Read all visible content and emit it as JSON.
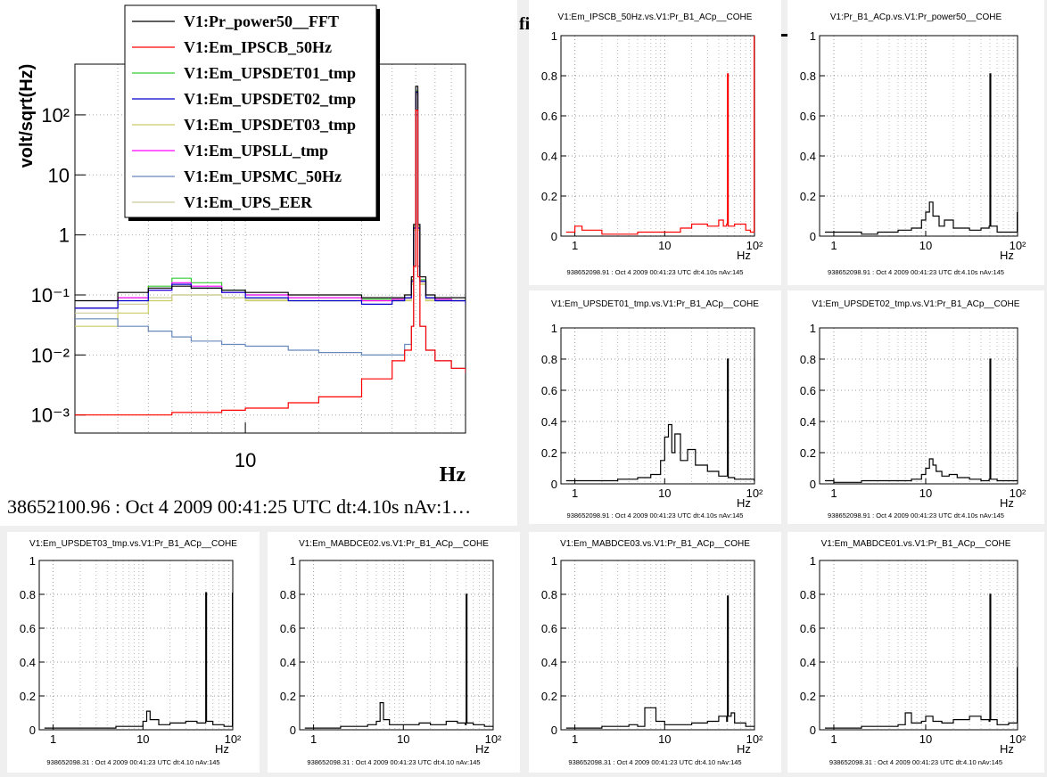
{
  "main_plot": {
    "ylabel": "volt/sqrt(Hz)",
    "xlabel": "Hz",
    "footer": "38652100.96 : Oct  4 2009 00:41:25 UTC dt:4.10s nAv:1…",
    "clipped_title": "fi",
    "legend": [
      {
        "label": "V1:Pr_power50__FFT",
        "color": "#000000"
      },
      {
        "label": "V1:Em_IPSCB_50Hz",
        "color": "#ff0000"
      },
      {
        "label": "V1:Em_UPSDET01_tmp",
        "color": "#33cc33"
      },
      {
        "label": "V1:Em_UPSDET02_tmp",
        "color": "#0000cc"
      },
      {
        "label": "V1:Em_UPSDET03_tmp",
        "color": "#cccc66"
      },
      {
        "label": "V1:Em_UPSLL_tmp",
        "color": "#ff00ff"
      },
      {
        "label": "V1:Em_UPSMC_50Hz",
        "color": "#6688bb"
      },
      {
        "label": "V1:Em_UPS_EER",
        "color": "#cccc99"
      }
    ],
    "y_ticks": [
      "10²",
      "10",
      "1",
      "10⁻¹",
      "10⁻²",
      "10⁻³"
    ],
    "x_ticks": [
      "10"
    ]
  },
  "chart_data": [
    {
      "type": "line",
      "title": "",
      "xlabel": "Hz",
      "ylabel": "volt/sqrt(Hz)",
      "x_scale": "log",
      "y_scale": "log",
      "xlim": [
        2,
        80
      ],
      "ylim": [
        0.0005,
        700
      ],
      "grid": true,
      "legend_position": "top-center",
      "x": [
        2,
        3,
        4,
        5,
        6,
        8,
        10,
        15,
        20,
        30,
        40,
        45,
        48,
        49,
        50,
        51,
        52,
        55,
        60,
        70,
        80
      ],
      "series": [
        {
          "name": "V1:Pr_power50__FFT",
          "color": "#000000",
          "values": [
            0.08,
            0.11,
            0.13,
            0.14,
            0.13,
            0.12,
            0.11,
            0.1,
            0.1,
            0.09,
            0.09,
            0.1,
            0.2,
            1.5,
            300,
            1.5,
            0.2,
            0.1,
            0.09,
            0.09,
            0.08
          ]
        },
        {
          "name": "V1:Em_IPSCB_50Hz",
          "color": "#ff0000",
          "values": [
            0.001,
            0.001,
            0.001,
            0.0011,
            0.0011,
            0.0012,
            0.0013,
            0.0016,
            0.002,
            0.004,
            0.008,
            0.012,
            0.03,
            0.3,
            120,
            0.2,
            0.03,
            0.012,
            0.008,
            0.006,
            0.005
          ]
        },
        {
          "name": "V1:Em_UPSDET01_tmp",
          "color": "#33cc33",
          "values": [
            0.06,
            0.09,
            0.14,
            0.19,
            0.16,
            0.12,
            0.1,
            0.09,
            0.09,
            0.085,
            0.085,
            0.09,
            0.18,
            1.4,
            250,
            1.4,
            0.18,
            0.09,
            0.085,
            0.08,
            0.08
          ]
        },
        {
          "name": "V1:Em_UPSDET02_tmp",
          "color": "#0000cc",
          "values": [
            0.06,
            0.08,
            0.12,
            0.15,
            0.13,
            0.11,
            0.09,
            0.08,
            0.08,
            0.07,
            0.08,
            0.09,
            0.17,
            1.3,
            240,
            1.3,
            0.17,
            0.09,
            0.08,
            0.08,
            0.07
          ]
        },
        {
          "name": "V1:Em_UPSDET03_tmp",
          "color": "#cccc66",
          "values": [
            0.03,
            0.05,
            0.08,
            0.1,
            0.1,
            0.09,
            0.08,
            0.08,
            0.08,
            0.08,
            0.08,
            0.08,
            0.15,
            1.2,
            230,
            1.2,
            0.15,
            0.08,
            0.08,
            0.08,
            0.08
          ]
        },
        {
          "name": "V1:Em_UPSLL_tmp",
          "color": "#ff00ff",
          "values": [
            0.06,
            0.09,
            0.12,
            0.16,
            0.14,
            0.11,
            0.1,
            0.09,
            0.09,
            0.08,
            0.085,
            0.09,
            0.17,
            1.3,
            240,
            1.3,
            0.17,
            0.09,
            0.085,
            0.08,
            0.08
          ]
        },
        {
          "name": "V1:Em_UPSMC_50Hz",
          "color": "#6688bb",
          "values": [
            0.04,
            0.03,
            0.025,
            0.02,
            0.017,
            0.015,
            0.014,
            0.012,
            0.011,
            0.01,
            0.01,
            0.015,
            0.03,
            0.3,
            100,
            0.3,
            0.03,
            0.012,
            0.008,
            0.006,
            0.005
          ]
        },
        {
          "name": "V1:Em_UPS_EER",
          "color": "#cccc99",
          "values": [
            0.05,
            0.07,
            0.09,
            0.1,
            0.1,
            0.09,
            0.085,
            0.08,
            0.08,
            0.08,
            0.08,
            0.085,
            0.16,
            1.3,
            220,
            1.3,
            0.16,
            0.085,
            0.08,
            0.08,
            0.08
          ]
        }
      ]
    },
    {
      "type": "line",
      "title": "V1:Em_IPSCB_50Hz.vs.V1:Pr_B1_ACp__COHE",
      "xlabel": "Hz",
      "ylabel": "",
      "x_scale": "log",
      "xlim": [
        0.7,
        100
      ],
      "ylim": [
        0,
        1
      ],
      "grid": true,
      "y_ticks": [
        "0",
        "0.2",
        "0.4",
        "0.6",
        "0.8",
        "1"
      ],
      "x_ticks": [
        "1",
        "10",
        "10²"
      ],
      "footer": "938652098.91 : Oct  4 2009 00:41:23 UTC dt:4.10s nAv:145",
      "color": "#ff0000",
      "x": [
        0.8,
        1,
        1.2,
        2,
        3,
        5,
        10,
        15,
        20,
        30,
        40,
        45,
        49,
        50,
        51,
        60,
        80,
        90,
        99
      ],
      "values": [
        0.02,
        0.05,
        0.03,
        0.01,
        0.01,
        0.02,
        0.02,
        0.04,
        0.06,
        0.05,
        0.08,
        0.05,
        0.06,
        0.81,
        0.05,
        0.06,
        0.03,
        0.02,
        1.0
      ]
    },
    {
      "type": "line",
      "title": "V1:Pr_B1_ACp.vs.V1:Pr_power50__COHE",
      "xlabel": "Hz",
      "ylabel": "",
      "x_scale": "log",
      "xlim": [
        0.7,
        100
      ],
      "ylim": [
        0,
        1
      ],
      "grid": true,
      "y_ticks": [
        "0",
        "0.2",
        "0.4",
        "0.6",
        "0.8",
        "1"
      ],
      "x_ticks": [
        "1",
        "10",
        "10²"
      ],
      "footer": "938652098.91 : Oct  4 2009 00:41:23 UTC dt:4.10s nAv:145",
      "color": "#000000",
      "x": [
        0.8,
        1,
        2,
        3,
        5,
        7,
        9,
        10,
        11,
        12,
        14,
        16,
        20,
        30,
        40,
        49,
        50,
        51,
        60,
        99
      ],
      "values": [
        0.02,
        0.02,
        0.01,
        0.02,
        0.03,
        0.04,
        0.08,
        0.12,
        0.17,
        0.1,
        0.05,
        0.08,
        0.04,
        0.03,
        0.04,
        0.05,
        0.81,
        0.05,
        0.02,
        0.12
      ]
    },
    {
      "type": "line",
      "title": "V1:Em_UPSDET01_tmp.vs.V1:Pr_B1_ACp__COHE",
      "xlabel": "Hz",
      "ylabel": "",
      "x_scale": "log",
      "xlim": [
        0.7,
        100
      ],
      "ylim": [
        0,
        1
      ],
      "grid": true,
      "y_ticks": [
        "0",
        "0.2",
        "0.4",
        "0.6",
        "0.8",
        "1"
      ],
      "x_ticks": [
        "1",
        "10",
        "10²"
      ],
      "footer": "938652098.91 : Oct  4 2009 00:41:23 UTC dt:4.10s nAv:145",
      "color": "#000000",
      "x": [
        0.8,
        1,
        2,
        3,
        5,
        7,
        9,
        10,
        11,
        12,
        13,
        15,
        18,
        22,
        30,
        40,
        49,
        50,
        51,
        60,
        99
      ],
      "values": [
        0.02,
        0.02,
        0.02,
        0.03,
        0.04,
        0.06,
        0.15,
        0.3,
        0.38,
        0.2,
        0.32,
        0.15,
        0.22,
        0.12,
        0.08,
        0.05,
        0.05,
        0.8,
        0.04,
        0.03,
        0.02
      ]
    },
    {
      "type": "line",
      "title": "V1:Em_UPSDET02_tmp.vs.V1:Pr_B1_ACp__COHE",
      "xlabel": "Hz",
      "ylabel": "",
      "x_scale": "log",
      "xlim": [
        0.7,
        100
      ],
      "ylim": [
        0,
        1
      ],
      "grid": true,
      "y_ticks": [
        "0",
        "0.2",
        "0.4",
        "0.6",
        "0.8",
        "1"
      ],
      "x_ticks": [
        "1",
        "10",
        "10²"
      ],
      "footer": "938652098.91 : Oct  4 2009 00:41:23 UTC dt:4.10s nAv:145",
      "color": "#000000",
      "x": [
        0.8,
        1,
        2,
        3,
        5,
        7,
        9,
        10,
        11,
        12,
        13,
        15,
        18,
        22,
        30,
        40,
        49,
        50,
        51,
        60,
        99
      ],
      "values": [
        0.02,
        0.01,
        0.02,
        0.02,
        0.02,
        0.03,
        0.06,
        0.1,
        0.16,
        0.12,
        0.08,
        0.05,
        0.06,
        0.04,
        0.03,
        0.02,
        0.03,
        0.8,
        0.03,
        0.02,
        0.02
      ]
    },
    {
      "type": "line",
      "title": "V1:Em_UPSDET03_tmp.vs.V1:Pr_B1_ACp__COHE",
      "xlabel": "Hz",
      "ylabel": "",
      "x_scale": "log",
      "xlim": [
        0.7,
        100
      ],
      "ylim": [
        0,
        1
      ],
      "grid": true,
      "y_ticks": [
        "0",
        "0.2",
        "0.4",
        "0.6",
        "0.8",
        "1"
      ],
      "x_ticks": [
        "1",
        "10",
        "10²"
      ],
      "footer": "938652098.31 : Oct  4 2009 00:41:23 UTC dt:4.10 nAv:145",
      "color": "#000000",
      "x": [
        0.8,
        1,
        2,
        3,
        5,
        8,
        10,
        11,
        12,
        15,
        20,
        30,
        40,
        49,
        50,
        51,
        60,
        80,
        99
      ],
      "values": [
        0.01,
        0.01,
        0.01,
        0.01,
        0.02,
        0.02,
        0.05,
        0.11,
        0.06,
        0.03,
        0.04,
        0.05,
        0.04,
        0.04,
        0.81,
        0.05,
        0.03,
        0.02,
        0.81
      ]
    },
    {
      "type": "line",
      "title": "V1:Em_MABDCE02.vs.V1:Pr_B1_ACp__COHE",
      "xlabel": "Hz",
      "ylabel": "",
      "x_scale": "log",
      "xlim": [
        0.7,
        100
      ],
      "ylim": [
        0,
        1
      ],
      "grid": true,
      "y_ticks": [
        "0",
        "0.2",
        "0.4",
        "0.6",
        "0.8",
        "1"
      ],
      "x_ticks": [
        "1",
        "10",
        "10²"
      ],
      "footer": "938652098.31 : Oct  4 2009 00:41:23 UTC dt:4.10 nAv:145",
      "color": "#000000",
      "x": [
        0.8,
        1,
        2,
        3,
        4,
        5,
        5.5,
        6,
        7,
        10,
        15,
        20,
        30,
        40,
        49,
        50,
        51,
        60,
        80,
        99
      ],
      "values": [
        0.01,
        0.01,
        0.02,
        0.02,
        0.03,
        0.05,
        0.16,
        0.06,
        0.03,
        0.03,
        0.04,
        0.03,
        0.05,
        0.04,
        0.03,
        0.8,
        0.04,
        0.03,
        0.02,
        0.02
      ]
    },
    {
      "type": "line",
      "title": "V1:Em_MABDCE03.vs.V1:Pr_B1_ACp__COHE",
      "xlabel": "Hz",
      "ylabel": "",
      "x_scale": "log",
      "xlim": [
        0.7,
        100
      ],
      "ylim": [
        0,
        1
      ],
      "grid": true,
      "y_ticks": [
        "0",
        "0.2",
        "0.4",
        "0.6",
        "0.8",
        "1"
      ],
      "x_ticks": [
        "1",
        "10",
        "10²"
      ],
      "footer": "938652098.31 : Oct  4 2009 00:41:23 UTC dt:4.10 nAv:145",
      "color": "#000000",
      "x": [
        0.8,
        1,
        2,
        3,
        4,
        5,
        6,
        8,
        10,
        15,
        20,
        30,
        40,
        49,
        50,
        51,
        55,
        60,
        80,
        99
      ],
      "values": [
        0.01,
        0.01,
        0.02,
        0.02,
        0.03,
        0.02,
        0.13,
        0.05,
        0.03,
        0.03,
        0.04,
        0.05,
        0.08,
        0.05,
        0.79,
        0.08,
        0.1,
        0.04,
        0.02,
        0.02
      ]
    },
    {
      "type": "line",
      "title": "V1:Em_MABDCE01.vs.V1:Pr_B1_ACp__COHE",
      "xlabel": "Hz",
      "ylabel": "",
      "x_scale": "log",
      "xlim": [
        0.7,
        100
      ],
      "ylim": [
        0,
        1
      ],
      "grid": true,
      "y_ticks": [
        "0",
        "0.2",
        "0.4",
        "0.6",
        "0.8",
        "1"
      ],
      "x_ticks": [
        "1",
        "10",
        "10²"
      ],
      "footer": "938652098.31 : Oct  4 2009 00:41:23 UTC dt:4.10 nAv:145",
      "color": "#000000",
      "x": [
        0.8,
        1,
        2,
        3,
        5,
        6,
        7,
        9,
        10,
        12,
        15,
        20,
        30,
        40,
        49,
        50,
        51,
        60,
        80,
        99
      ],
      "values": [
        0.01,
        0.01,
        0.02,
        0.02,
        0.03,
        0.1,
        0.04,
        0.05,
        0.08,
        0.05,
        0.04,
        0.06,
        0.08,
        0.06,
        0.05,
        0.8,
        0.06,
        0.03,
        0.04,
        0.37
      ]
    }
  ]
}
